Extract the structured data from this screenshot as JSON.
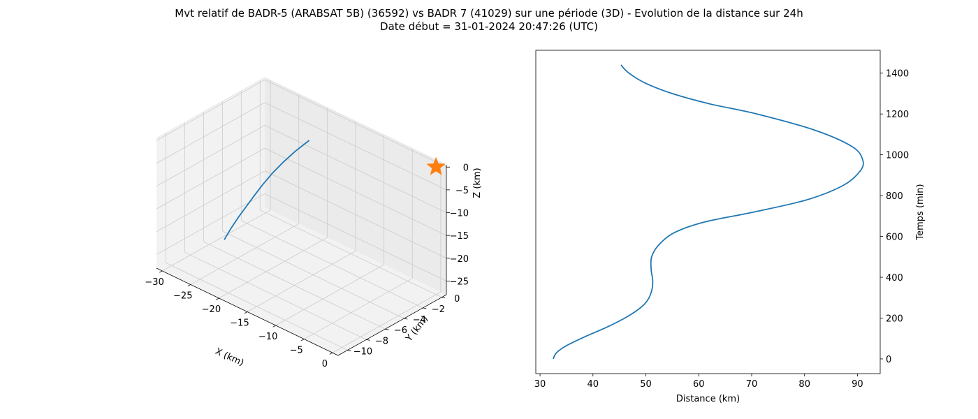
{
  "figure": {
    "title_line1": "Mvt relatif de BADR-5 (ARABSAT 5B) (36592) vs BADR 7 (41029) sur une période (3D) - Evolution de la distance sur 24h",
    "title_line2": "Date début = 31-01-2024 20:47:26 (UTC)"
  },
  "chart_data": [
    {
      "type": "line3d",
      "xlabel": "X (km)",
      "ylabel": "Y (km)",
      "zlabel": "Z (km)",
      "xlim": [
        -31,
        1
      ],
      "ylim": [
        -11,
        0.5
      ],
      "zlim": [
        -28,
        0.5
      ],
      "x_ticks": [
        -30,
        -25,
        -20,
        -15,
        -10,
        -5,
        0
      ],
      "y_ticks": [
        0,
        -2,
        -4,
        -6,
        -8,
        -10
      ],
      "z_ticks": [
        0,
        -5,
        -10,
        -15,
        -20,
        -25
      ],
      "grid": true,
      "series": [
        {
          "color": "#1f77b4",
          "x": [
            -29,
            -28.5,
            -28.0,
            -27.4,
            -26.8,
            -26.1,
            -25.3,
            -24.2,
            -22.8,
            -21.0
          ],
          "y": [
            -5.0,
            -4.6,
            -4.1,
            -3.6,
            -3.1,
            -2.6,
            -2.1,
            -1.6,
            -1.2,
            -0.8
          ],
          "z": [
            -27.5,
            -25.2,
            -23.0,
            -20.8,
            -18.6,
            -16.3,
            -14.0,
            -11.5,
            -8.8,
            -5.8
          ]
        }
      ],
      "markers": [
        {
          "symbol": "star",
          "color": "#ff7f0e",
          "x": 0,
          "y": 0,
          "z": 0
        }
      ]
    },
    {
      "type": "line",
      "xlabel": "Distance (km)",
      "ylabel": "Temps (min)",
      "xlim": [
        29.2,
        94.3
      ],
      "ylim": [
        -72,
        1512
      ],
      "x_ticks": [
        30,
        40,
        50,
        60,
        70,
        80,
        90
      ],
      "y_ticks": [
        0,
        200,
        400,
        600,
        800,
        1000,
        1200,
        1400
      ],
      "y_axis_side": "right",
      "series": [
        {
          "color": "#1f77b4",
          "x": [
            32.5,
            33.1,
            35.0,
            38.6,
            43.0,
            47.0,
            49.8,
            51.0,
            51.3,
            51.0,
            51.1,
            52.5,
            55.5,
            61.0,
            70.5,
            80.5,
            87.3,
            90.5,
            91.0,
            89.0,
            82.0,
            71.0,
            62.0,
            55.0,
            50.0,
            46.8,
            45.3
          ],
          "y": [
            0,
            30,
            65,
            110,
            160,
            215,
            270,
            325,
            380,
            440,
            500,
            560,
            620,
            670,
            720,
            780,
            850,
            920,
            975,
            1040,
            1120,
            1200,
            1250,
            1300,
            1350,
            1400,
            1440
          ]
        }
      ]
    }
  ]
}
